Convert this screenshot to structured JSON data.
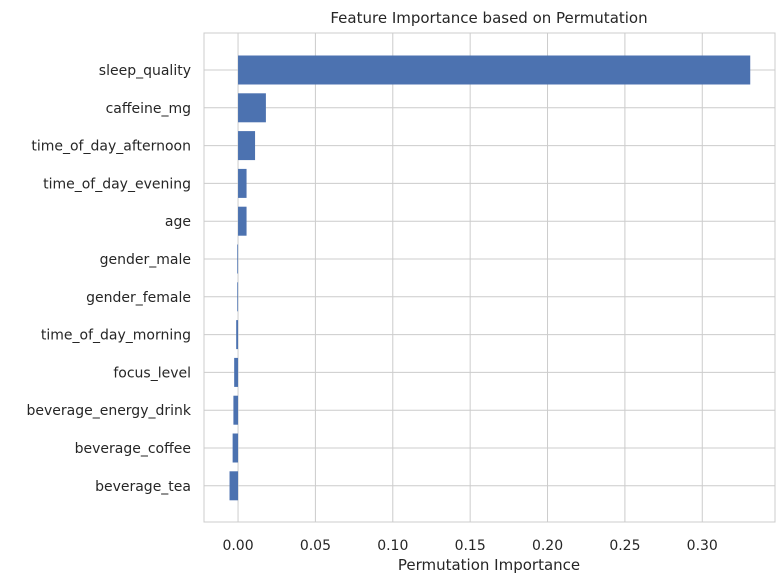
{
  "chart_data": {
    "type": "bar",
    "orientation": "horizontal",
    "title": "Feature Importance based on Permutation",
    "xlabel": "Permutation Importance",
    "ylabel": "",
    "xlim": [
      -0.022,
      0.347
    ],
    "xticks": [
      0.0,
      0.05,
      0.1,
      0.15,
      0.2,
      0.25,
      0.3
    ],
    "xtick_labels": [
      "0.00",
      "0.05",
      "0.10",
      "0.15",
      "0.20",
      "0.25",
      "0.30"
    ],
    "grid": true,
    "legend": "none",
    "bar_color": "#4c72b0",
    "categories": [
      "sleep_quality",
      "caffeine_mg",
      "time_of_day_afternoon",
      "time_of_day_evening",
      "age",
      "gender_male",
      "gender_female",
      "time_of_day_morning",
      "focus_level",
      "beverage_energy_drink",
      "beverage_coffee",
      "beverage_tea"
    ],
    "values": [
      0.331,
      0.018,
      0.011,
      0.0055,
      0.0055,
      -0.0005,
      -0.0005,
      -0.0012,
      -0.0025,
      -0.003,
      -0.0035,
      -0.0055
    ]
  }
}
